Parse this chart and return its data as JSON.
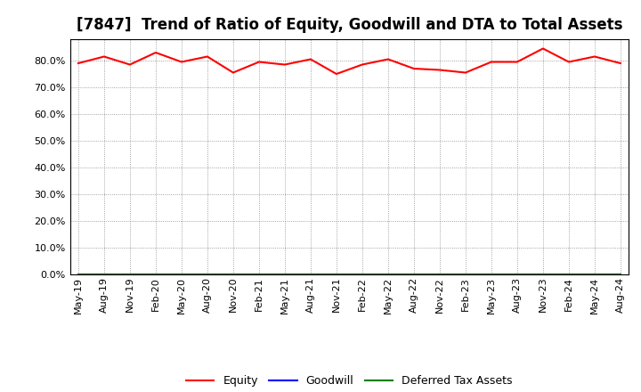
{
  "title": "[7847]  Trend of Ratio of Equity, Goodwill and DTA to Total Assets",
  "x_labels": [
    "May-19",
    "Aug-19",
    "Nov-19",
    "Feb-20",
    "May-20",
    "Aug-20",
    "Nov-20",
    "Feb-21",
    "May-21",
    "Aug-21",
    "Nov-21",
    "Feb-22",
    "May-22",
    "Aug-22",
    "Nov-22",
    "Feb-23",
    "May-23",
    "Aug-23",
    "Nov-23",
    "Feb-24",
    "May-24",
    "Aug-24"
  ],
  "equity": [
    79.0,
    81.5,
    78.5,
    83.0,
    79.5,
    81.5,
    75.5,
    79.5,
    78.5,
    80.5,
    75.0,
    78.5,
    80.5,
    77.0,
    76.5,
    75.5,
    79.5,
    79.5,
    84.5,
    79.5,
    81.5,
    79.0
  ],
  "goodwill": [
    0.0,
    0.0,
    0.0,
    0.0,
    0.0,
    0.0,
    0.0,
    0.0,
    0.0,
    0.0,
    0.0,
    0.0,
    0.0,
    0.0,
    0.0,
    0.0,
    0.0,
    0.0,
    0.0,
    0.0,
    0.0,
    0.0
  ],
  "dta": [
    0.0,
    0.0,
    0.0,
    0.0,
    0.0,
    0.0,
    0.0,
    0.0,
    0.0,
    0.0,
    0.0,
    0.0,
    0.0,
    0.0,
    0.0,
    0.0,
    0.0,
    0.0,
    0.0,
    0.0,
    0.0,
    0.0
  ],
  "equity_color": "#ff0000",
  "goodwill_color": "#0000ff",
  "dta_color": "#008000",
  "ylim": [
    0,
    88
  ],
  "yticks": [
    0,
    10,
    20,
    30,
    40,
    50,
    60,
    70,
    80
  ],
  "background_color": "#ffffff",
  "grid_color": "#888888",
  "title_fontsize": 12,
  "legend_labels": [
    "Equity",
    "Goodwill",
    "Deferred Tax Assets"
  ]
}
